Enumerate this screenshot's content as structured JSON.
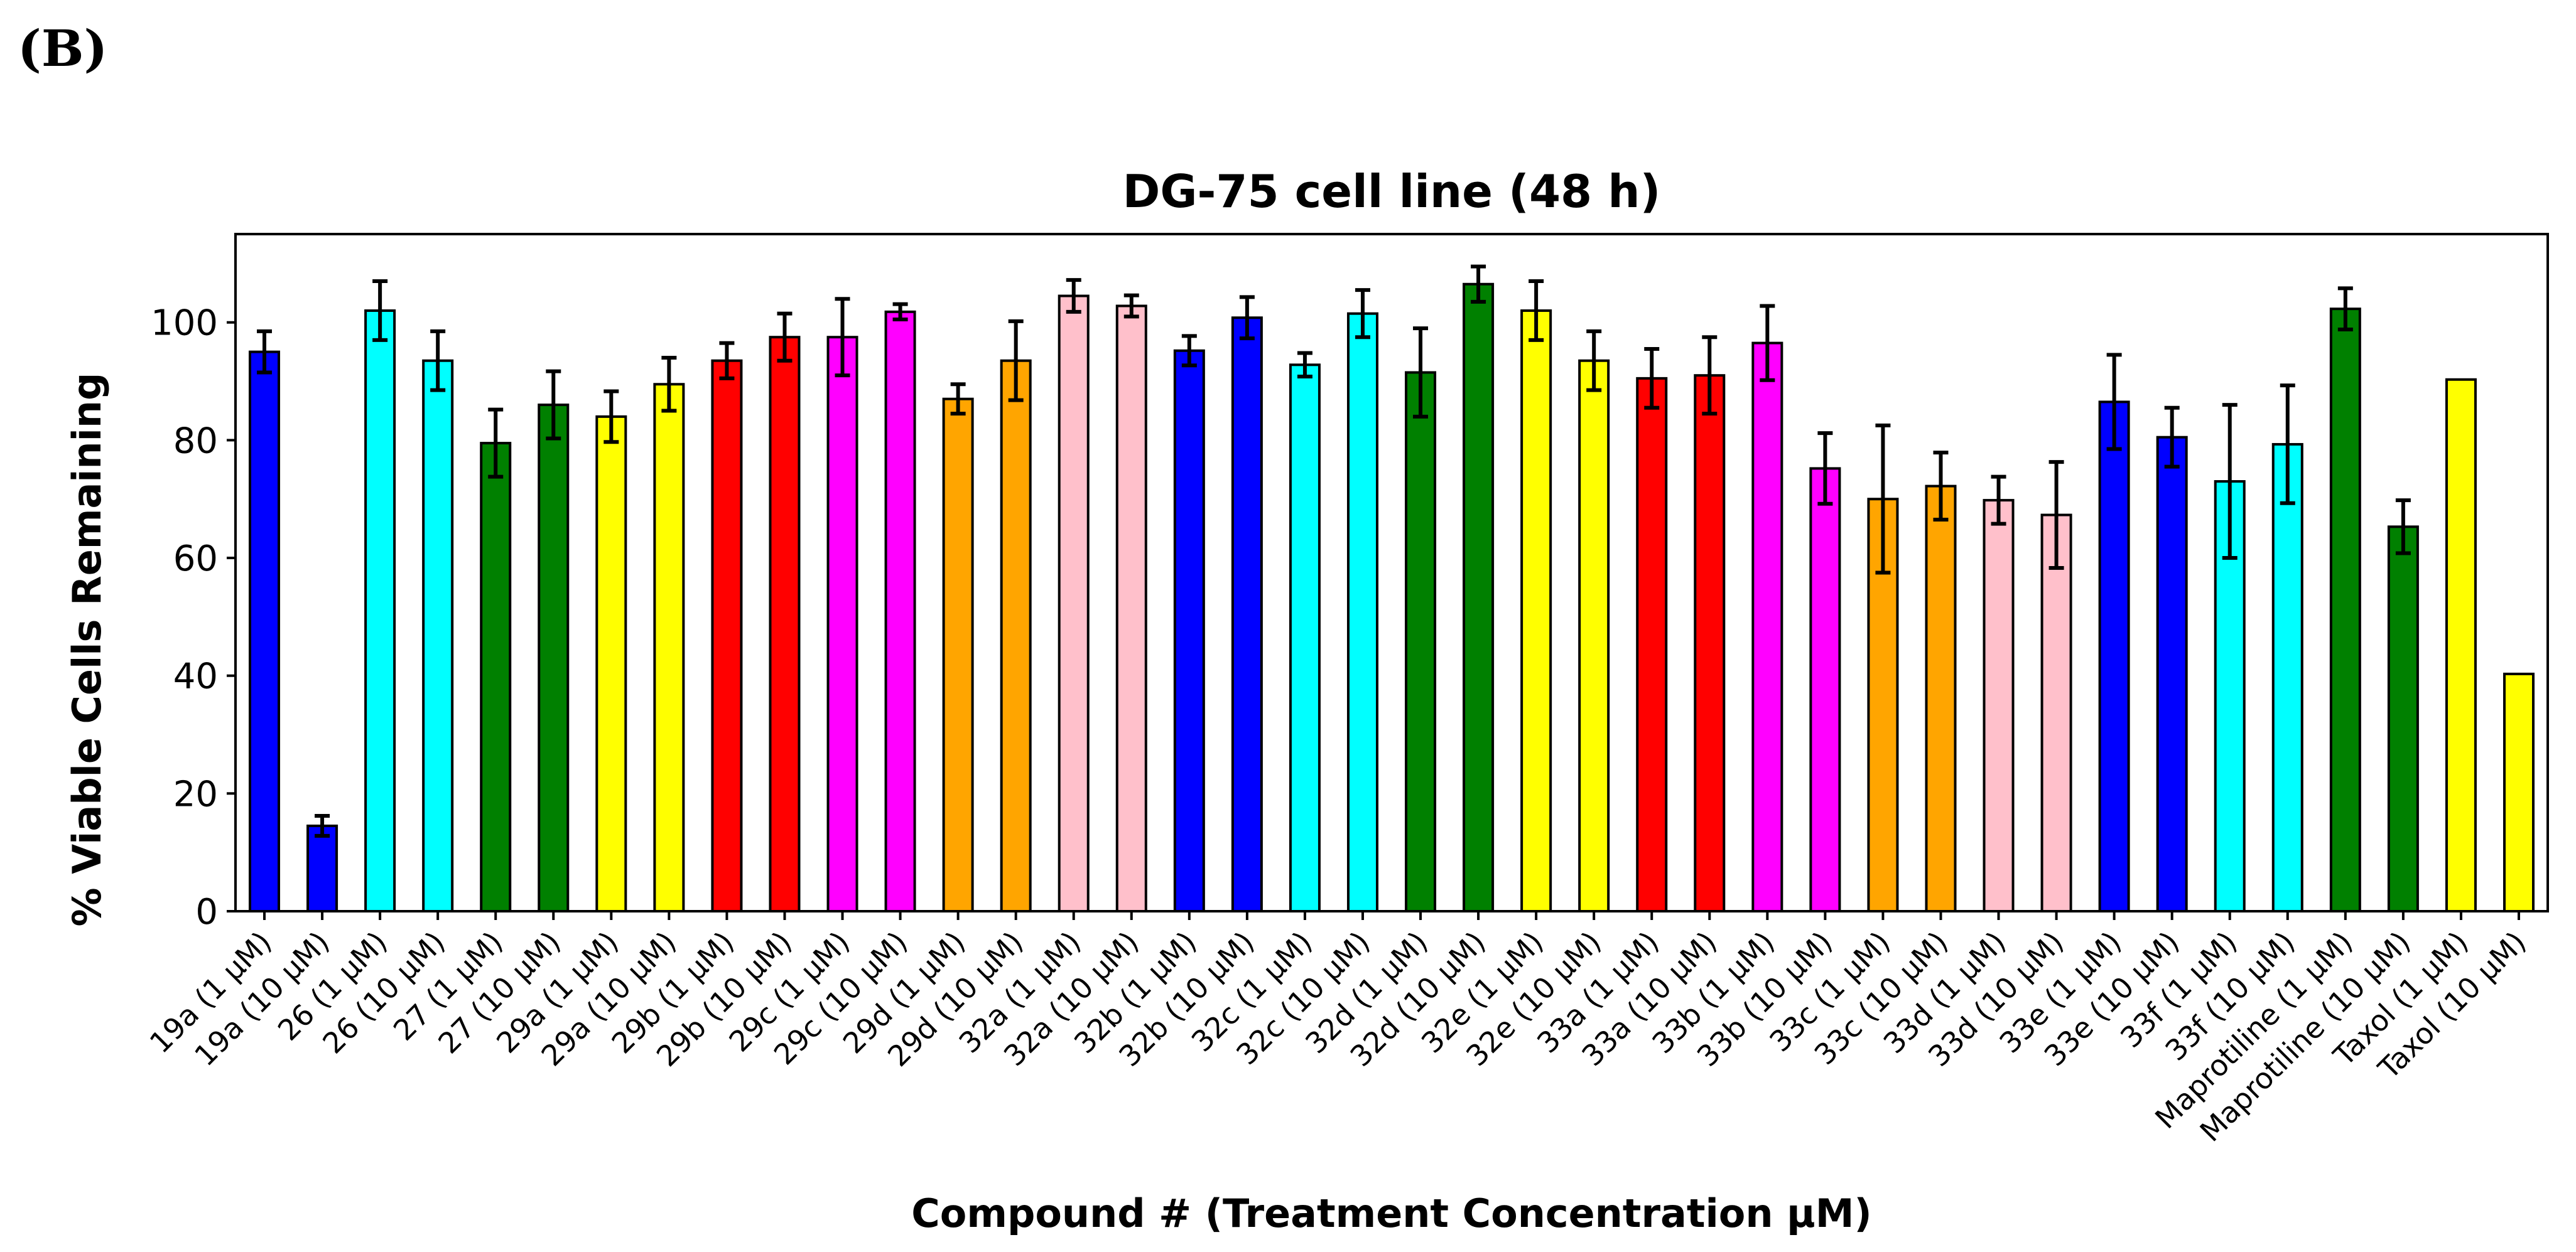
{
  "panel_label": "(B)",
  "chart_data": {
    "type": "bar",
    "title": "DG-75 cell line (48 h)",
    "xlabel": "Compound # (Treatment Concentration μM)",
    "ylabel": "% Viable Cells Remaining",
    "ylim": [
      0,
      115
    ],
    "yticks": [
      0,
      20,
      40,
      60,
      80,
      100
    ],
    "grid": false,
    "categories": [
      "19a (1 μM)",
      "19a (10 μM)",
      "26 (1 μM)",
      "26 (10 μM)",
      "27 (1 μM)",
      "27 (10 μM)",
      "29a (1 μM)",
      "29a (10 μM)",
      "29b (1 μM)",
      "29b (10 μM)",
      "29c (1 μM)",
      "29c (10 μM)",
      "29d (1 μM)",
      "29d (10 μM)",
      "32a (1 μM)",
      "32a (10 μM)",
      "32b (1 μM)",
      "32b (10 μM)",
      "32c (1 μM)",
      "32c (10 μM)",
      "32d (1 μM)",
      "32d (10 μM)",
      "32e (1 μM)",
      "32e (10 μM)",
      "33a (1 μM)",
      "33a (10 μM)",
      "33b (1 μM)",
      "33b (10 μM)",
      "33c (1 μM)",
      "33c (10 μM)",
      "33d (1 μM)",
      "33d (10 μM)",
      "33e (1 μM)",
      "33e (10 μM)",
      "33f (1 μM)",
      "33f (10 μM)",
      "Maprotiline (1 μM)",
      "Maprotiline (10 μM)",
      "Taxol (1 μM)",
      "Taxol (10 μM)"
    ],
    "values": [
      95,
      14.5,
      102,
      93.5,
      79.5,
      86,
      84,
      89.5,
      93.5,
      97.5,
      97.5,
      101.8,
      87,
      93.5,
      104.5,
      102.8,
      95.2,
      100.8,
      92.8,
      101.5,
      91.5,
      106.5,
      102,
      93.5,
      90.5,
      91,
      96.5,
      75.2,
      70,
      72.2,
      69.8,
      67.3,
      86.5,
      80.5,
      73,
      79.3,
      102.3,
      65.3,
      90.3,
      40.3
    ],
    "errors": [
      3.5,
      1.7,
      5,
      5,
      5.7,
      5.7,
      4.3,
      4.5,
      3,
      4,
      6.5,
      1.3,
      2.5,
      6.7,
      2.7,
      1.8,
      2.5,
      3.5,
      2,
      4,
      7.5,
      3,
      5,
      5,
      5,
      6.5,
      6.3,
      6,
      12.5,
      5.7,
      4,
      9,
      8,
      5,
      13,
      10,
      3.5,
      4.5,
      0,
      0
    ],
    "colors": [
      "#0000ff",
      "#0000ff",
      "#00ffff",
      "#00ffff",
      "#008000",
      "#008000",
      "#ffff00",
      "#ffff00",
      "#ff0000",
      "#ff0000",
      "#ff00ff",
      "#ff00ff",
      "#ffa500",
      "#ffa500",
      "#ffc0cb",
      "#ffc0cb",
      "#0000ff",
      "#0000ff",
      "#00ffff",
      "#00ffff",
      "#008000",
      "#008000",
      "#ffff00",
      "#ffff00",
      "#ff0000",
      "#ff0000",
      "#ff00ff",
      "#ff00ff",
      "#ffa500",
      "#ffa500",
      "#ffc0cb",
      "#ffc0cb",
      "#0000ff",
      "#0000ff",
      "#00ffff",
      "#00ffff",
      "#008000",
      "#008000",
      "#ffff00",
      "#ffff00"
    ]
  }
}
